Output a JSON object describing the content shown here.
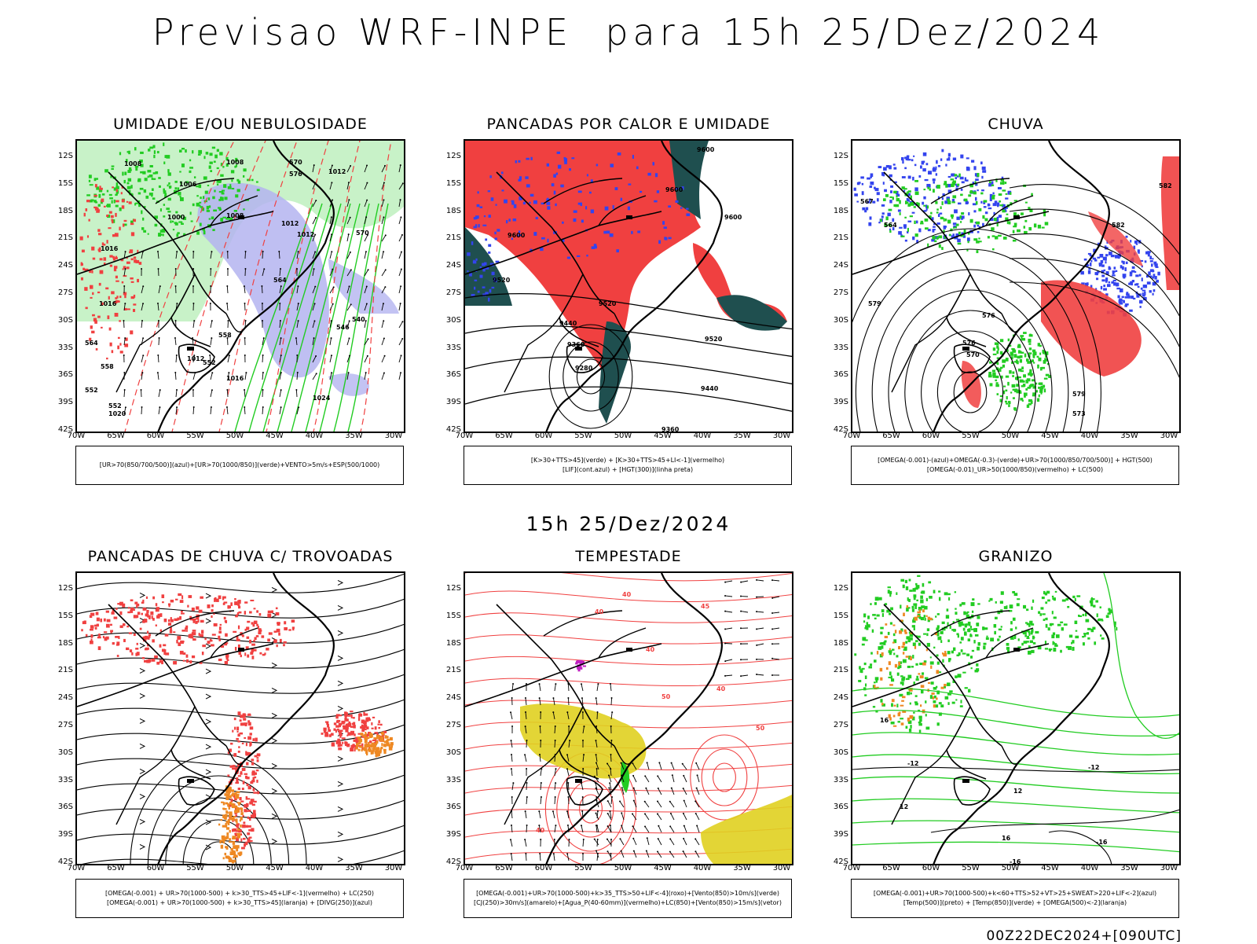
{
  "title": "Previsao WRF-INPE  para 15h 25/Dez/2024",
  "mid_title": "15h 25/Dez/2024",
  "footer": "00Z22DEC2024+[090UTC]",
  "lat_ticks": [
    "12S",
    "15S",
    "18S",
    "21S",
    "24S",
    "27S",
    "30S",
    "33S",
    "36S",
    "39S",
    "42S"
  ],
  "lon_ticks": [
    "70W",
    "65W",
    "60W",
    "55W",
    "50W",
    "45W",
    "40W",
    "35W",
    "30W"
  ],
  "colors": {
    "blue_shade": "#8080f0",
    "light_blue_shade": "#b4b4f0",
    "green": "#22cc22",
    "red": "#f04040",
    "dark_teal": "#1f4f4f",
    "orange": "#ee8822",
    "yellow": "#e0d020",
    "purple": "#c020c0"
  },
  "panels": [
    {
      "title": "UMIDADE E/OU NEBULOSIDADE",
      "legend": [
        "[UR>70(850/700/500)](azul)+[UR>70(1000/850)](verde)+VENTO>5m/s+ESP(500/1000)"
      ],
      "contour_labels": [
        "1008",
        "1008",
        "1006",
        "1000",
        "1008",
        "1012",
        "1012",
        "1012",
        "1016",
        "1016",
        "1020",
        "1024",
        "1012",
        "1016",
        "570",
        "576",
        "570",
        "564",
        "558",
        "552",
        "564",
        "552",
        "546",
        "540",
        "558",
        "552"
      ]
    },
    {
      "title": "PANCADAS POR CALOR E UMIDADE",
      "legend": [
        "[K>30+TTS>45](verde) + [K>30+TTS>45+LI<-1](vermelho)",
        "[LIF](cont.azul) + [HGT(300)](linha preta)"
      ],
      "contour_labels": [
        "9600",
        "9600",
        "9600",
        "9600",
        "9520",
        "9520",
        "9440",
        "9360",
        "9280",
        "9520",
        "9440",
        "9360"
      ]
    },
    {
      "title": "CHUVA",
      "legend": [
        "[OMEGA(-0.001)-(azul)+OMEGA(-0.3)-(verde)+UR>70(1000/850/700/500)] + HGT(500)",
        "[OMEGA(-0.01)_UR>50(1000/850)(vermelho) + LC(500)"
      ],
      "contour_labels": [
        "582",
        "582",
        "579",
        "576",
        "576",
        "570",
        "567",
        "564",
        "579",
        "573"
      ]
    },
    {
      "title": "PANCADAS DE CHUVA C/ TROVOADAS",
      "legend": [
        "[OMEGA(-0.001) + UR>70(1000-500) + k>30_TTS>45+LIF<-1](vermelho) + LC(250)",
        "[OMEGA(-0.001) + UR>70(1000-500) + k>30_TTS>45](laranja) + [DIVG(250)](azul)"
      ],
      "contour_labels": []
    },
    {
      "title": "TEMPESTADE",
      "legend": [
        "[OMEGA(-0.001)+UR>70(1000-500)+k>35_TTS>50+LIF<-4](roxo)+[Vento(850)>10m/s](verde)",
        "[CJ(250)>30m/s](amarelo)+[Agua_P(40-60mm)](vermelho)+LC(850)+[Vento(850)>15m/s](vetor)"
      ],
      "contour_labels": [
        "40",
        "45",
        "40",
        "50",
        "40",
        "50",
        "40",
        "40"
      ]
    },
    {
      "title": "GRANIZO",
      "legend": [
        "[OMEGA(-0.001)+UR>70(1000-500)+k<60+TTS>52+VT>25+SWEAT>220+LIF<-2](azul)",
        "[Temp(500)](preto) + [Temp(850)](verde) + [OMEGA(500)<-2](laranja)"
      ],
      "contour_labels": [
        "-12",
        "-12",
        "12",
        "12",
        "16",
        "-16",
        "-16",
        "16"
      ]
    }
  ]
}
